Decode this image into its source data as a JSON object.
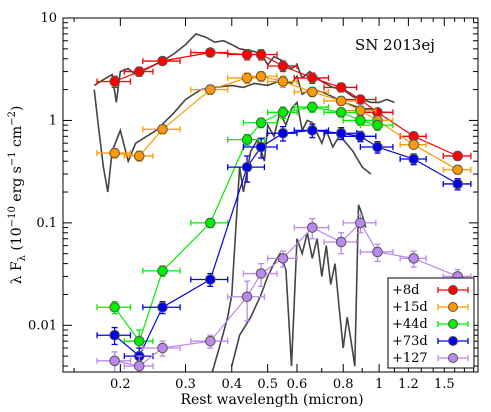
{
  "chart_data": {
    "type": "scatter",
    "title": "",
    "annotation": "SN 2013ej",
    "xlabel": "Rest wavelength (micron)",
    "ylabel_parts": {
      "lambda": "λ F",
      "sub": "λ",
      "unit_open": " (10",
      "exp1": "−10",
      "erg": " erg s",
      "exp2": "−1",
      "cm": " cm",
      "exp3": "−2",
      "close": ")"
    },
    "x_scale": "log",
    "y_scale": "log",
    "xlim": [
      0.14,
      1.85
    ],
    "ylim": [
      0.0035,
      10
    ],
    "x_ticks": [
      {
        "value": 0.2,
        "label": "0.2"
      },
      {
        "value": 0.3,
        "label": "0.3"
      },
      {
        "value": 0.4,
        "label": "0.4"
      },
      {
        "value": 0.5,
        "label": "0.5"
      },
      {
        "value": 0.6,
        "label": "0.6"
      },
      {
        "value": 0.8,
        "label": "0.8"
      },
      {
        "value": 1.0,
        "label": "1"
      },
      {
        "value": 1.2,
        "label": "1.2"
      },
      {
        "value": 1.5,
        "label": "1.5"
      }
    ],
    "y_ticks": [
      {
        "value": 0.01,
        "label": "0.01"
      },
      {
        "value": 0.1,
        "label": "0.1"
      },
      {
        "value": 1,
        "label": "1"
      },
      {
        "value": 10,
        "label": "10"
      }
    ],
    "legend_position": "bottom-right",
    "grid": false,
    "series": [
      {
        "name": "+8d",
        "color": "#ff0000",
        "points": [
          {
            "x": 0.193,
            "y": 2.4,
            "xerr": 0.02,
            "yerr": 0.3
          },
          {
            "x": 0.225,
            "y": 3.0,
            "xerr": 0.02,
            "yerr": 0.3
          },
          {
            "x": 0.26,
            "y": 3.8,
            "xerr": 0.03,
            "yerr": 0.3
          },
          {
            "x": 0.35,
            "y": 4.6,
            "xerr": 0.04,
            "yerr": 0.4
          },
          {
            "x": 0.44,
            "y": 4.4,
            "xerr": 0.05,
            "yerr": 0.5
          },
          {
            "x": 0.48,
            "y": 4.4,
            "xerr": 0.05,
            "yerr": 0.5
          },
          {
            "x": 0.55,
            "y": 3.4,
            "xerr": 0.05,
            "yerr": 0.4
          },
          {
            "x": 0.66,
            "y": 2.6,
            "xerr": 0.07,
            "yerr": 0.3
          },
          {
            "x": 0.79,
            "y": 2.1,
            "xerr": 0.08,
            "yerr": 0.2
          },
          {
            "x": 0.89,
            "y": 1.6,
            "xerr": 0.09,
            "yerr": 0.15
          },
          {
            "x": 0.99,
            "y": 1.2,
            "xerr": 0.1,
            "yerr": 0.1
          },
          {
            "x": 1.24,
            "y": 0.7,
            "xerr": 0.1,
            "yerr": 0.06
          },
          {
            "x": 1.63,
            "y": 0.45,
            "xerr": 0.14,
            "yerr": 0.04
          }
        ]
      },
      {
        "name": "+15d",
        "color": "#ff9900",
        "points": [
          {
            "x": 0.193,
            "y": 0.48,
            "xerr": 0.02,
            "yerr": 0.05
          },
          {
            "x": 0.225,
            "y": 0.45,
            "xerr": 0.02,
            "yerr": 0.05
          },
          {
            "x": 0.26,
            "y": 0.82,
            "xerr": 0.03,
            "yerr": 0.08
          },
          {
            "x": 0.35,
            "y": 2.0,
            "xerr": 0.04,
            "yerr": 0.2
          },
          {
            "x": 0.44,
            "y": 2.6,
            "xerr": 0.05,
            "yerr": 0.3
          },
          {
            "x": 0.48,
            "y": 2.7,
            "xerr": 0.05,
            "yerr": 0.3
          },
          {
            "x": 0.55,
            "y": 2.4,
            "xerr": 0.05,
            "yerr": 0.3
          },
          {
            "x": 0.66,
            "y": 1.9,
            "xerr": 0.07,
            "yerr": 0.2
          },
          {
            "x": 0.79,
            "y": 1.55,
            "xerr": 0.08,
            "yerr": 0.15
          },
          {
            "x": 0.89,
            "y": 1.25,
            "xerr": 0.09,
            "yerr": 0.12
          },
          {
            "x": 0.99,
            "y": 1.0,
            "xerr": 0.1,
            "yerr": 0.1
          },
          {
            "x": 1.24,
            "y": 0.58,
            "xerr": 0.1,
            "yerr": 0.05
          },
          {
            "x": 1.63,
            "y": 0.33,
            "xerr": 0.14,
            "yerr": 0.03
          }
        ]
      },
      {
        "name": "+44d",
        "color": "#00ee00",
        "points": [
          {
            "x": 0.193,
            "y": 0.015,
            "xerr": 0.02,
            "yerr": 0.002
          },
          {
            "x": 0.225,
            "y": 0.007,
            "xerr": 0.02,
            "yerr": 0.002
          },
          {
            "x": 0.26,
            "y": 0.034,
            "xerr": 0.03,
            "yerr": 0.004
          },
          {
            "x": 0.35,
            "y": 0.1,
            "xerr": 0.04,
            "yerr": 0.01
          },
          {
            "x": 0.44,
            "y": 0.65,
            "xerr": 0.05,
            "yerr": 0.08
          },
          {
            "x": 0.48,
            "y": 0.95,
            "xerr": 0.05,
            "yerr": 0.1
          },
          {
            "x": 0.55,
            "y": 1.2,
            "xerr": 0.05,
            "yerr": 0.15
          },
          {
            "x": 0.66,
            "y": 1.35,
            "xerr": 0.07,
            "yerr": 0.15
          },
          {
            "x": 0.79,
            "y": 1.2,
            "xerr": 0.08,
            "yerr": 0.12
          },
          {
            "x": 0.89,
            "y": 1.0,
            "xerr": 0.09,
            "yerr": 0.1
          },
          {
            "x": 0.99,
            "y": 0.9,
            "xerr": 0.1,
            "yerr": 0.1
          }
        ]
      },
      {
        "name": "+73d",
        "color": "#0000ee",
        "points": [
          {
            "x": 0.193,
            "y": 0.008,
            "xerr": 0.02,
            "yerr": 0.0015
          },
          {
            "x": 0.225,
            "y": 0.005,
            "xerr": 0.02,
            "yerr": 0.001
          },
          {
            "x": 0.26,
            "y": 0.015,
            "xerr": 0.03,
            "yerr": 0.002
          },
          {
            "x": 0.35,
            "y": 0.028,
            "xerr": 0.04,
            "yerr": 0.004
          },
          {
            "x": 0.44,
            "y": 0.35,
            "xerr": 0.05,
            "yerr": 0.1
          },
          {
            "x": 0.48,
            "y": 0.55,
            "xerr": 0.05,
            "yerr": 0.12
          },
          {
            "x": 0.55,
            "y": 0.75,
            "xerr": 0.05,
            "yerr": 0.12
          },
          {
            "x": 0.66,
            "y": 0.8,
            "xerr": 0.07,
            "yerr": 0.12
          },
          {
            "x": 0.79,
            "y": 0.75,
            "xerr": 0.08,
            "yerr": 0.1
          },
          {
            "x": 0.89,
            "y": 0.7,
            "xerr": 0.09,
            "yerr": 0.08
          },
          {
            "x": 0.99,
            "y": 0.55,
            "xerr": 0.1,
            "yerr": 0.07
          },
          {
            "x": 1.24,
            "y": 0.42,
            "xerr": 0.1,
            "yerr": 0.05
          },
          {
            "x": 1.63,
            "y": 0.24,
            "xerr": 0.14,
            "yerr": 0.03
          }
        ]
      },
      {
        "name": "+127",
        "color": "#bb88ee",
        "points": [
          {
            "x": 0.193,
            "y": 0.0045,
            "xerr": 0.02,
            "yerr": 0.001
          },
          {
            "x": 0.225,
            "y": 0.004,
            "xerr": 0.02,
            "yerr": 0.001
          },
          {
            "x": 0.26,
            "y": 0.006,
            "xerr": 0.03,
            "yerr": 0.001
          },
          {
            "x": 0.35,
            "y": 0.007,
            "xerr": 0.04,
            "yerr": 0.001
          },
          {
            "x": 0.44,
            "y": 0.019,
            "xerr": 0.05,
            "yerr": 0.008
          },
          {
            "x": 0.48,
            "y": 0.032,
            "xerr": 0.05,
            "yerr": 0.008
          },
          {
            "x": 0.55,
            "y": 0.045,
            "xerr": 0.05,
            "yerr": 0.008
          },
          {
            "x": 0.66,
            "y": 0.09,
            "xerr": 0.07,
            "yerr": 0.02
          },
          {
            "x": 0.79,
            "y": 0.065,
            "xerr": 0.08,
            "yerr": 0.015
          },
          {
            "x": 0.89,
            "y": 0.1,
            "xerr": 0.09,
            "yerr": 0.02
          },
          {
            "x": 0.99,
            "y": 0.052,
            "xerr": 0.1,
            "yerr": 0.01
          },
          {
            "x": 1.24,
            "y": 0.045,
            "xerr": 0.1,
            "yerr": 0.008
          },
          {
            "x": 1.63,
            "y": 0.03,
            "xerr": 0.14,
            "yerr": 0.005
          }
        ]
      }
    ],
    "spectra": [
      {
        "color": "#444444",
        "points": [
          [
            0.17,
            2.2
          ],
          [
            0.18,
            2.5
          ],
          [
            0.19,
            2.8
          ],
          [
            0.195,
            1.5
          ],
          [
            0.2,
            3.0
          ],
          [
            0.21,
            3.2
          ],
          [
            0.22,
            2.8
          ],
          [
            0.24,
            3.3
          ],
          [
            0.26,
            3.8
          ],
          [
            0.28,
            4.5
          ],
          [
            0.3,
            5.5
          ],
          [
            0.32,
            7.0
          ],
          [
            0.34,
            6.5
          ],
          [
            0.36,
            5.8
          ],
          [
            0.38,
            6.0
          ],
          [
            0.4,
            5.5
          ],
          [
            0.42,
            5.0
          ],
          [
            0.45,
            4.8
          ],
          [
            0.48,
            4.5
          ],
          [
            0.5,
            3.5
          ],
          [
            0.52,
            4.2
          ],
          [
            0.55,
            3.8
          ],
          [
            0.58,
            3.2
          ],
          [
            0.6,
            3.5
          ],
          [
            0.62,
            2.6
          ],
          [
            0.65,
            3.0
          ],
          [
            0.7,
            2.4
          ],
          [
            0.75,
            2.1
          ],
          [
            0.8,
            2.0
          ],
          [
            0.85,
            1.7
          ],
          [
            0.9,
            1.6
          ],
          [
            0.95,
            1.5
          ],
          [
            1.0,
            1.5
          ],
          [
            1.05,
            1.6
          ],
          [
            1.1,
            1.5
          ]
        ]
      },
      {
        "color": "#444444",
        "points": [
          [
            0.17,
            2.0
          ],
          [
            0.175,
            0.8
          ],
          [
            0.18,
            0.35
          ],
          [
            0.185,
            0.2
          ],
          [
            0.19,
            0.5
          ],
          [
            0.2,
            0.8
          ],
          [
            0.21,
            0.4
          ],
          [
            0.22,
            0.6
          ],
          [
            0.25,
            0.8
          ],
          [
            0.28,
            1.2
          ],
          [
            0.3,
            1.6
          ],
          [
            0.33,
            2.0
          ],
          [
            0.36,
            2.1
          ],
          [
            0.4,
            2.2
          ],
          [
            0.43,
            2.1
          ],
          [
            0.46,
            2.3
          ],
          [
            0.5,
            2.2
          ],
          [
            0.55,
            2.5
          ],
          [
            0.58,
            2.3
          ],
          [
            0.6,
            2.7
          ],
          [
            0.62,
            1.8
          ],
          [
            0.65,
            2.0
          ],
          [
            0.7,
            1.9
          ],
          [
            0.75,
            1.7
          ],
          [
            0.8,
            1.5
          ],
          [
            0.85,
            1.4
          ],
          [
            0.9,
            1.3
          ],
          [
            0.95,
            1.3
          ],
          [
            1.0,
            1.2
          ],
          [
            1.05,
            1.2
          ]
        ]
      },
      {
        "color": "#444444",
        "points": [
          [
            0.35,
            0.003
          ],
          [
            0.37,
            0.006
          ],
          [
            0.39,
            0.012
          ],
          [
            0.4,
            0.02
          ],
          [
            0.42,
            0.35
          ],
          [
            0.43,
            0.2
          ],
          [
            0.45,
            0.5
          ],
          [
            0.47,
            0.65
          ],
          [
            0.49,
            0.4
          ],
          [
            0.5,
            0.9
          ],
          [
            0.52,
            0.7
          ],
          [
            0.54,
            1.2
          ],
          [
            0.56,
            0.9
          ],
          [
            0.58,
            1.3
          ],
          [
            0.6,
            1.5
          ],
          [
            0.62,
            0.8
          ],
          [
            0.64,
            1.0
          ],
          [
            0.66,
            0.95
          ],
          [
            0.7,
            0.6
          ],
          [
            0.72,
            0.8
          ],
          [
            0.75,
            0.55
          ],
          [
            0.78,
            0.7
          ],
          [
            0.8,
            0.65
          ],
          [
            0.85,
            0.5
          ],
          [
            0.9,
            0.35
          ],
          [
            0.95,
            0.3
          ]
        ]
      },
      {
        "color": "#444444",
        "points": [
          [
            0.4,
            0.004
          ],
          [
            0.42,
            0.008
          ],
          [
            0.45,
            0.012
          ],
          [
            0.48,
            0.02
          ],
          [
            0.5,
            0.03
          ],
          [
            0.52,
            0.04
          ],
          [
            0.54,
            0.05
          ],
          [
            0.56,
            0.035
          ],
          [
            0.58,
            0.004
          ],
          [
            0.6,
            0.07
          ],
          [
            0.62,
            0.05
          ],
          [
            0.64,
            0.08
          ],
          [
            0.66,
            0.045
          ],
          [
            0.68,
            0.07
          ],
          [
            0.7,
            0.03
          ],
          [
            0.72,
            0.06
          ],
          [
            0.74,
            0.025
          ],
          [
            0.76,
            0.04
          ],
          [
            0.78,
            0.015
          ],
          [
            0.8,
            0.006
          ],
          [
            0.82,
            0.012
          ],
          [
            0.84,
            0.007
          ],
          [
            0.86,
            0.004
          ],
          [
            0.88,
            0.15
          ],
          [
            0.9,
            0.12
          ],
          [
            0.92,
            0.09
          ]
        ]
      }
    ]
  }
}
